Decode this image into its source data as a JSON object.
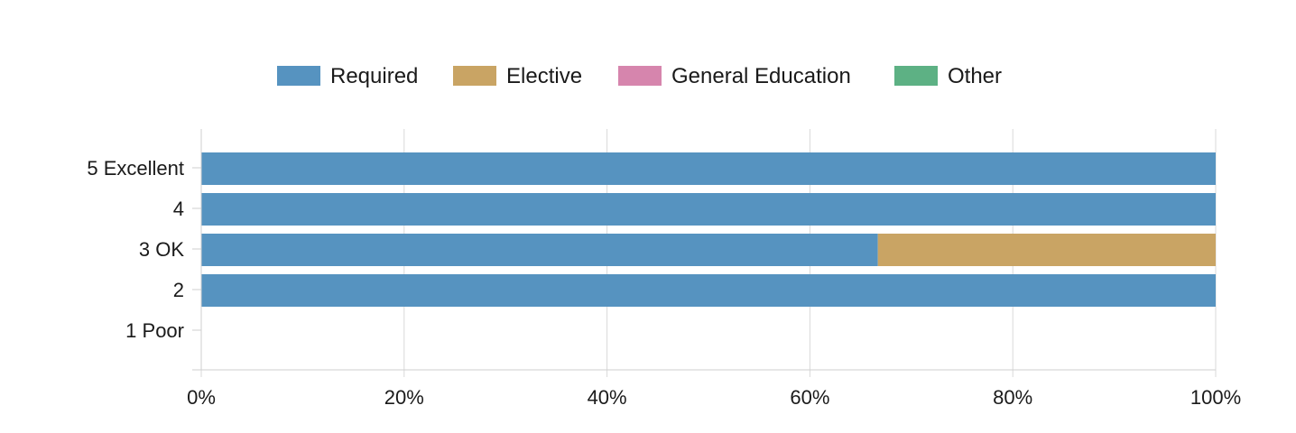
{
  "chart_data": {
    "type": "bar",
    "orientation": "horizontal",
    "stacked": true,
    "categories": [
      "5 Excellent",
      "4",
      "3 OK",
      "2",
      "1 Poor"
    ],
    "series": [
      {
        "name": "Required",
        "color": "#5693c0",
        "values": [
          100,
          100,
          66.7,
          100,
          0
        ]
      },
      {
        "name": "Elective",
        "color": "#c9a464",
        "values": [
          0,
          0,
          33.3,
          0,
          0
        ]
      },
      {
        "name": "General Education",
        "color": "#d685ad",
        "values": [
          0,
          0,
          0,
          0,
          0
        ]
      },
      {
        "name": "Other",
        "color": "#5db184",
        "values": [
          0,
          0,
          0,
          0,
          0
        ]
      }
    ],
    "x_ticks": [
      "0%",
      "20%",
      "40%",
      "60%",
      "80%",
      "100%"
    ],
    "xlim": [
      0,
      100
    ],
    "legend_position": "top",
    "grid": true
  }
}
